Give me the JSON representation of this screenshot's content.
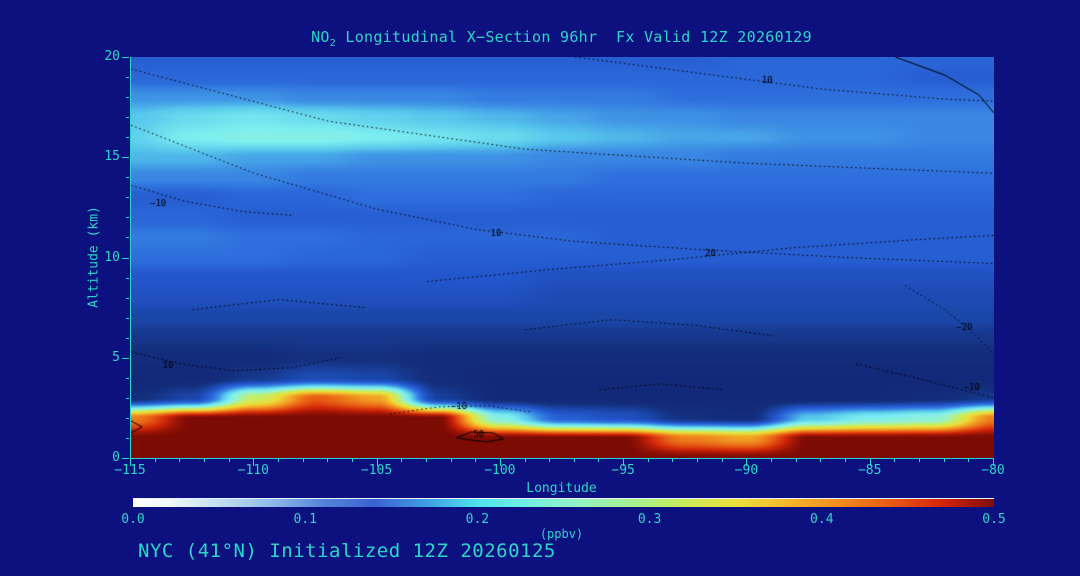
{
  "colors": {
    "background": "#0d1180",
    "accent": "#2dd4c8",
    "contour": "#000000"
  },
  "title": {
    "prefix": "NO",
    "subscript": "2",
    "rest": " Longitudinal X−Section 96hr  Fx Valid 12Z 20260129"
  },
  "footer": {
    "text": "NYC (41°N) Initialized 12Z 20260125"
  },
  "axes": {
    "x_label": "Longitude",
    "y_label": "Altitude (km)",
    "x_ticks": [
      {
        "value": -115,
        "label": "−115"
      },
      {
        "value": -110,
        "label": "−110"
      },
      {
        "value": -105,
        "label": "−105"
      },
      {
        "value": -100,
        "label": "−100"
      },
      {
        "value": -95,
        "label": "−95"
      },
      {
        "value": -90,
        "label": "−90"
      },
      {
        "value": -85,
        "label": "−85"
      },
      {
        "value": -80,
        "label": "−80"
      }
    ],
    "y_ticks": [
      {
        "value": 0,
        "label": "0"
      },
      {
        "value": 5,
        "label": "5"
      },
      {
        "value": 10,
        "label": "10"
      },
      {
        "value": 15,
        "label": "15"
      },
      {
        "value": 20,
        "label": "20"
      }
    ]
  },
  "colorbar": {
    "label": "(ppbv)",
    "min": 0.0,
    "max": 0.5,
    "ticks": [
      "0.0",
      "0.1",
      "0.2",
      "0.3",
      "0.4",
      "0.5"
    ],
    "stops": [
      {
        "v": 0.0,
        "c": "#ffffff"
      },
      {
        "v": 0.02,
        "c": "#f0f8fc"
      },
      {
        "v": 0.05,
        "c": "#c2dff2"
      },
      {
        "v": 0.08,
        "c": "#8fbce8"
      },
      {
        "v": 0.11,
        "c": "#5584da"
      },
      {
        "v": 0.14,
        "c": "#3b62d2"
      },
      {
        "v": 0.17,
        "c": "#3f9de4"
      },
      {
        "v": 0.2,
        "c": "#4fe3ee"
      },
      {
        "v": 0.23,
        "c": "#74efe2"
      },
      {
        "v": 0.26,
        "c": "#96f2c0"
      },
      {
        "v": 0.29,
        "c": "#a5ef8d"
      },
      {
        "v": 0.32,
        "c": "#c9ec5b"
      },
      {
        "v": 0.35,
        "c": "#ecdf3c"
      },
      {
        "v": 0.38,
        "c": "#f5b82c"
      },
      {
        "v": 0.41,
        "c": "#f28c1e"
      },
      {
        "v": 0.44,
        "c": "#ea5a14"
      },
      {
        "v": 0.47,
        "c": "#d42408"
      },
      {
        "v": 0.5,
        "c": "#7e0d05"
      }
    ]
  },
  "chart_data": {
    "type": "heatmap",
    "title": "NO2 Longitudinal X-Section 96hr Fx Valid 12Z 20260129",
    "xlabel": "Longitude",
    "ylabel": "Altitude (km)",
    "units": "ppbv",
    "xlim": [
      -115,
      -80
    ],
    "ylim": [
      0,
      20
    ],
    "zlim": [
      0.0,
      0.5
    ],
    "x": [
      -115,
      -112.5,
      -110,
      -107.5,
      -105,
      -102.5,
      -100,
      -97.5,
      -95,
      -92.5,
      -90,
      -87.5,
      -85,
      -82.5,
      -80
    ],
    "y": [
      0,
      1,
      2,
      3,
      4,
      5,
      6,
      7,
      8,
      9,
      10,
      11,
      12,
      13,
      14,
      15,
      16,
      17,
      18,
      19,
      20
    ],
    "values_note": "NO2 ppbv; rows ordered altitude ascending (y=0 km first), columns follow x longitudes",
    "values": [
      [
        0.5,
        0.5,
        0.5,
        0.5,
        0.5,
        0.5,
        0.5,
        0.5,
        0.5,
        0.5,
        0.5,
        0.5,
        0.5,
        0.5,
        0.5
      ],
      [
        0.5,
        0.5,
        0.5,
        0.5,
        0.5,
        0.5,
        0.5,
        0.5,
        0.5,
        0.42,
        0.4,
        0.5,
        0.5,
        0.5,
        0.5
      ],
      [
        0.42,
        0.5,
        0.5,
        0.5,
        0.5,
        0.5,
        0.25,
        0.12,
        0.1,
        0.05,
        0.04,
        0.2,
        0.24,
        0.26,
        0.42
      ],
      [
        0.04,
        0.08,
        0.32,
        0.44,
        0.4,
        0.07,
        0.03,
        0.03,
        0.03,
        0.03,
        0.03,
        0.03,
        0.03,
        0.04,
        0.06
      ],
      [
        0.03,
        0.03,
        0.06,
        0.09,
        0.08,
        0.04,
        0.03,
        0.03,
        0.03,
        0.03,
        0.03,
        0.03,
        0.03,
        0.03,
        0.03
      ],
      [
        0.04,
        0.04,
        0.04,
        0.05,
        0.05,
        0.04,
        0.04,
        0.04,
        0.04,
        0.04,
        0.04,
        0.04,
        0.04,
        0.04,
        0.04
      ],
      [
        0.06,
        0.06,
        0.06,
        0.06,
        0.06,
        0.06,
        0.06,
        0.06,
        0.06,
        0.06,
        0.06,
        0.06,
        0.06,
        0.06,
        0.06
      ],
      [
        0.08,
        0.08,
        0.08,
        0.08,
        0.08,
        0.08,
        0.08,
        0.08,
        0.08,
        0.08,
        0.08,
        0.08,
        0.08,
        0.08,
        0.08
      ],
      [
        0.1,
        0.1,
        0.1,
        0.1,
        0.1,
        0.1,
        0.1,
        0.09,
        0.09,
        0.09,
        0.09,
        0.09,
        0.09,
        0.09,
        0.09
      ],
      [
        0.11,
        0.11,
        0.11,
        0.11,
        0.11,
        0.11,
        0.11,
        0.1,
        0.1,
        0.1,
        0.1,
        0.1,
        0.1,
        0.1,
        0.1
      ],
      [
        0.14,
        0.14,
        0.14,
        0.13,
        0.13,
        0.12,
        0.12,
        0.12,
        0.12,
        0.12,
        0.12,
        0.12,
        0.12,
        0.12,
        0.12
      ],
      [
        0.15,
        0.15,
        0.14,
        0.14,
        0.13,
        0.13,
        0.13,
        0.13,
        0.12,
        0.12,
        0.12,
        0.12,
        0.12,
        0.12,
        0.12
      ],
      [
        0.13,
        0.13,
        0.12,
        0.12,
        0.12,
        0.12,
        0.12,
        0.12,
        0.12,
        0.12,
        0.12,
        0.12,
        0.12,
        0.12,
        0.12
      ],
      [
        0.12,
        0.12,
        0.13,
        0.13,
        0.14,
        0.14,
        0.14,
        0.13,
        0.13,
        0.13,
        0.13,
        0.13,
        0.13,
        0.13,
        0.13
      ],
      [
        0.16,
        0.16,
        0.16,
        0.15,
        0.15,
        0.15,
        0.15,
        0.15,
        0.14,
        0.14,
        0.14,
        0.14,
        0.14,
        0.14,
        0.14
      ],
      [
        0.19,
        0.19,
        0.18,
        0.18,
        0.17,
        0.17,
        0.17,
        0.16,
        0.16,
        0.16,
        0.15,
        0.15,
        0.15,
        0.15,
        0.15
      ],
      [
        0.21,
        0.24,
        0.25,
        0.25,
        0.24,
        0.23,
        0.22,
        0.2,
        0.19,
        0.18,
        0.18,
        0.17,
        0.17,
        0.16,
        0.16
      ],
      [
        0.2,
        0.22,
        0.23,
        0.22,
        0.21,
        0.2,
        0.19,
        0.18,
        0.17,
        0.17,
        0.16,
        0.16,
        0.16,
        0.16,
        0.16
      ],
      [
        0.17,
        0.17,
        0.17,
        0.16,
        0.16,
        0.16,
        0.15,
        0.15,
        0.15,
        0.14,
        0.14,
        0.14,
        0.14,
        0.14,
        0.14
      ],
      [
        0.13,
        0.13,
        0.13,
        0.13,
        0.13,
        0.13,
        0.13,
        0.13,
        0.13,
        0.13,
        0.13,
        0.13,
        0.13,
        0.12,
        0.12
      ],
      [
        0.12,
        0.12,
        0.12,
        0.12,
        0.12,
        0.12,
        0.12,
        0.12,
        0.12,
        0.12,
        0.13,
        0.13,
        0.13,
        0.13,
        0.13
      ]
    ],
    "colormap": [
      {
        "v": 0.0,
        "c": "#101c6e"
      },
      {
        "v": 0.05,
        "c": "#14307f"
      },
      {
        "v": 0.08,
        "c": "#1a46a8"
      },
      {
        "v": 0.11,
        "c": "#2356cc"
      },
      {
        "v": 0.14,
        "c": "#2e6fdd"
      },
      {
        "v": 0.17,
        "c": "#3f93e6"
      },
      {
        "v": 0.2,
        "c": "#57c8ec"
      },
      {
        "v": 0.24,
        "c": "#7deef0"
      },
      {
        "v": 0.28,
        "c": "#9df2c4"
      },
      {
        "v": 0.32,
        "c": "#c6ee62"
      },
      {
        "v": 0.36,
        "c": "#eedd38"
      },
      {
        "v": 0.4,
        "c": "#f2a224"
      },
      {
        "v": 0.44,
        "c": "#e85c14"
      },
      {
        "v": 0.47,
        "c": "#cf2408"
      },
      {
        "v": 0.5,
        "c": "#7c0b04"
      }
    ],
    "contours": [
      {
        "label": "10",
        "label_pos": [
          -100.2,
          11.2
        ],
        "solid": false,
        "points": [
          [
            -115,
            16.6
          ],
          [
            -110,
            14.2
          ],
          [
            -105,
            12.4
          ],
          [
            -101,
            11.4
          ],
          [
            -97,
            10.8
          ],
          [
            -92,
            10.4
          ],
          [
            -86,
            10.0
          ],
          [
            -80,
            9.7
          ]
        ]
      },
      {
        "label": "−10",
        "label_pos": [
          -113.9,
          12.7
        ],
        "solid": false,
        "points": [
          [
            -115,
            13.6
          ],
          [
            -112.8,
            12.8
          ],
          [
            -110.5,
            12.3
          ],
          [
            -108.5,
            12.1
          ]
        ]
      },
      {
        "label": "20",
        "label_pos": [
          -91.5,
          10.2
        ],
        "solid": false,
        "points": [
          [
            -103,
            8.8
          ],
          [
            -98,
            9.4
          ],
          [
            -93,
            9.9
          ],
          [
            -88,
            10.5
          ],
          [
            -83,
            10.9
          ],
          [
            -80,
            11.1
          ]
        ]
      },
      {
        "solid": false,
        "points": [
          [
            -115,
            19.4
          ],
          [
            -107,
            16.8
          ],
          [
            -99,
            15.4
          ],
          [
            -90,
            14.7
          ],
          [
            -80,
            14.2
          ]
        ]
      },
      {
        "label": "10",
        "label_pos": [
          -89.2,
          18.8
        ],
        "solid": false,
        "points": [
          [
            -97,
            20
          ],
          [
            -92,
            19.2
          ],
          [
            -87,
            18.4
          ],
          [
            -82,
            17.9
          ],
          [
            -80,
            17.8
          ]
        ]
      },
      {
        "solid": true,
        "points": [
          [
            -84,
            20
          ],
          [
            -82,
            19.1
          ],
          [
            -80.6,
            18.1
          ],
          [
            -80,
            17.2
          ]
        ]
      },
      {
        "label": "−20",
        "label_pos": [
          -81.2,
          6.5
        ],
        "solid": false,
        "points": [
          [
            -83.6,
            8.6
          ],
          [
            -82,
            7.4
          ],
          [
            -80.8,
            6.2
          ],
          [
            -80,
            5.2
          ]
        ]
      },
      {
        "label": "−10",
        "label_pos": [
          -80.9,
          3.5
        ],
        "solid": false,
        "points": [
          [
            -85.6,
            4.7
          ],
          [
            -83.2,
            4.0
          ],
          [
            -81,
            3.3
          ],
          [
            -80,
            3.0
          ]
        ]
      },
      {
        "label": "10",
        "label_pos": [
          -113.5,
          4.6
        ],
        "solid": false,
        "points": [
          [
            -115,
            5.3
          ],
          [
            -113,
            4.7
          ],
          [
            -110.8,
            4.35
          ],
          [
            -108.5,
            4.5
          ],
          [
            -106.5,
            5.0
          ]
        ]
      },
      {
        "label": "−10",
        "label_pos": [
          -101.7,
          2.55
        ],
        "solid": false,
        "points": [
          [
            -104.5,
            2.2
          ],
          [
            -102.5,
            2.55
          ],
          [
            -100.5,
            2.6
          ],
          [
            -98.8,
            2.3
          ]
        ]
      },
      {
        "label": "50",
        "label_pos": [
          -100.9,
          1.15
        ],
        "solid": true,
        "points": [
          [
            -101.8,
            1.0
          ],
          [
            -101.2,
            1.3
          ],
          [
            -100.3,
            1.25
          ],
          [
            -99.9,
            0.95
          ],
          [
            -100.6,
            0.8
          ],
          [
            -101.8,
            1.0
          ]
        ]
      },
      {
        "solid": true,
        "points": [
          [
            -115,
            1.25
          ],
          [
            -114.55,
            1.55
          ],
          [
            -115,
            1.85
          ]
        ]
      },
      {
        "solid": false,
        "points": [
          [
            -99,
            6.4
          ],
          [
            -95.5,
            6.9
          ],
          [
            -92,
            6.6
          ],
          [
            -89,
            6.1
          ]
        ]
      },
      {
        "solid": false,
        "points": [
          [
            -112.5,
            7.4
          ],
          [
            -109,
            7.9
          ],
          [
            -105.5,
            7.5
          ]
        ]
      },
      {
        "solid": false,
        "points": [
          [
            -96,
            3.4
          ],
          [
            -93.5,
            3.7
          ],
          [
            -91,
            3.4
          ]
        ]
      }
    ]
  }
}
